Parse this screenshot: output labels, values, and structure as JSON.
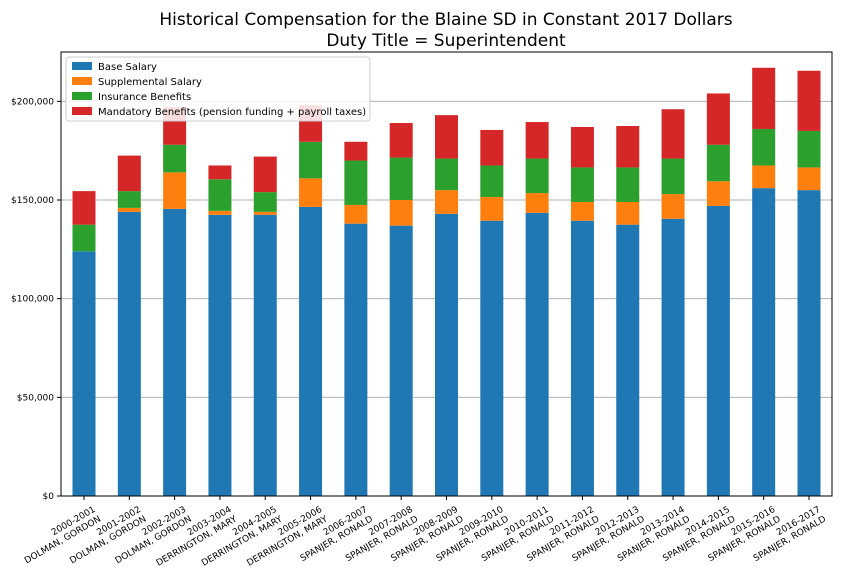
{
  "chart_data": {
    "type": "bar",
    "stacked": true,
    "title": "Historical Compensation for the Blaine SD in Constant 2017 Dollars",
    "subtitle": "Duty Title = Superintendent",
    "xlabel": "",
    "ylabel": "",
    "ylim": [
      0,
      225000
    ],
    "yticks": [
      0,
      50000,
      100000,
      150000,
      200000
    ],
    "ytick_labels": [
      "$0",
      "$50,000",
      "$100,000",
      "$150,000",
      "$200,000"
    ],
    "grid": "y",
    "legend_position": "top-left",
    "categories": [
      [
        "2000-2001",
        "DOLMAN, GORDON"
      ],
      [
        "2001-2002",
        "DOLMAN, GORDON"
      ],
      [
        "2002-2003",
        "DOLMAN, GORDON"
      ],
      [
        "2003-2004",
        "DERRINGTON, MARY"
      ],
      [
        "2004-2005",
        "DERRINGTON, MARY"
      ],
      [
        "2005-2006",
        "DERRINGTON, MARY"
      ],
      [
        "2006-2007",
        "SPANJER, RONALD"
      ],
      [
        "2007-2008",
        "SPANJER, RONALD"
      ],
      [
        "2008-2009",
        "SPANJER, RONALD"
      ],
      [
        "2009-2010",
        "SPANJER, RONALD"
      ],
      [
        "2010-2011",
        "SPANJER, RONALD"
      ],
      [
        "2011-2012",
        "SPANJER, RONALD"
      ],
      [
        "2012-2013",
        "SPANJER, RONALD"
      ],
      [
        "2013-2014",
        "SPANJER, RONALD"
      ],
      [
        "2014-2015",
        "SPANJER, RONALD"
      ],
      [
        "2015-2016",
        "SPANJER, RONALD"
      ],
      [
        "2016-2017",
        "SPANJER, RONALD"
      ]
    ],
    "series": [
      {
        "name": "Base Salary",
        "color": "#1f77b4",
        "values": [
          124000,
          144000,
          145500,
          142500,
          142500,
          146500,
          138000,
          137000,
          143000,
          139500,
          143500,
          139500,
          137500,
          140500,
          147000,
          156000,
          155000
        ]
      },
      {
        "name": "Supplemental Salary",
        "color": "#ff7f0e",
        "values": [
          0,
          2000,
          18500,
          2000,
          1500,
          14500,
          9500,
          13000,
          12000,
          12000,
          10000,
          9500,
          11500,
          12500,
          12500,
          11500,
          11500
        ]
      },
      {
        "name": "Insurance Benefits",
        "color": "#2ca02c",
        "values": [
          13500,
          8500,
          14000,
          16000,
          10000,
          18500,
          22500,
          21500,
          16000,
          16000,
          17500,
          17500,
          17500,
          18000,
          18500,
          18500,
          18500
        ]
      },
      {
        "name": "Mandatory Benefits (pension funding + payroll taxes)",
        "color": "#d62728",
        "values": [
          17000,
          18000,
          19000,
          7000,
          18000,
          18500,
          9500,
          17500,
          22000,
          18000,
          18500,
          20500,
          21000,
          25000,
          26000,
          31000,
          30500
        ]
      }
    ]
  }
}
